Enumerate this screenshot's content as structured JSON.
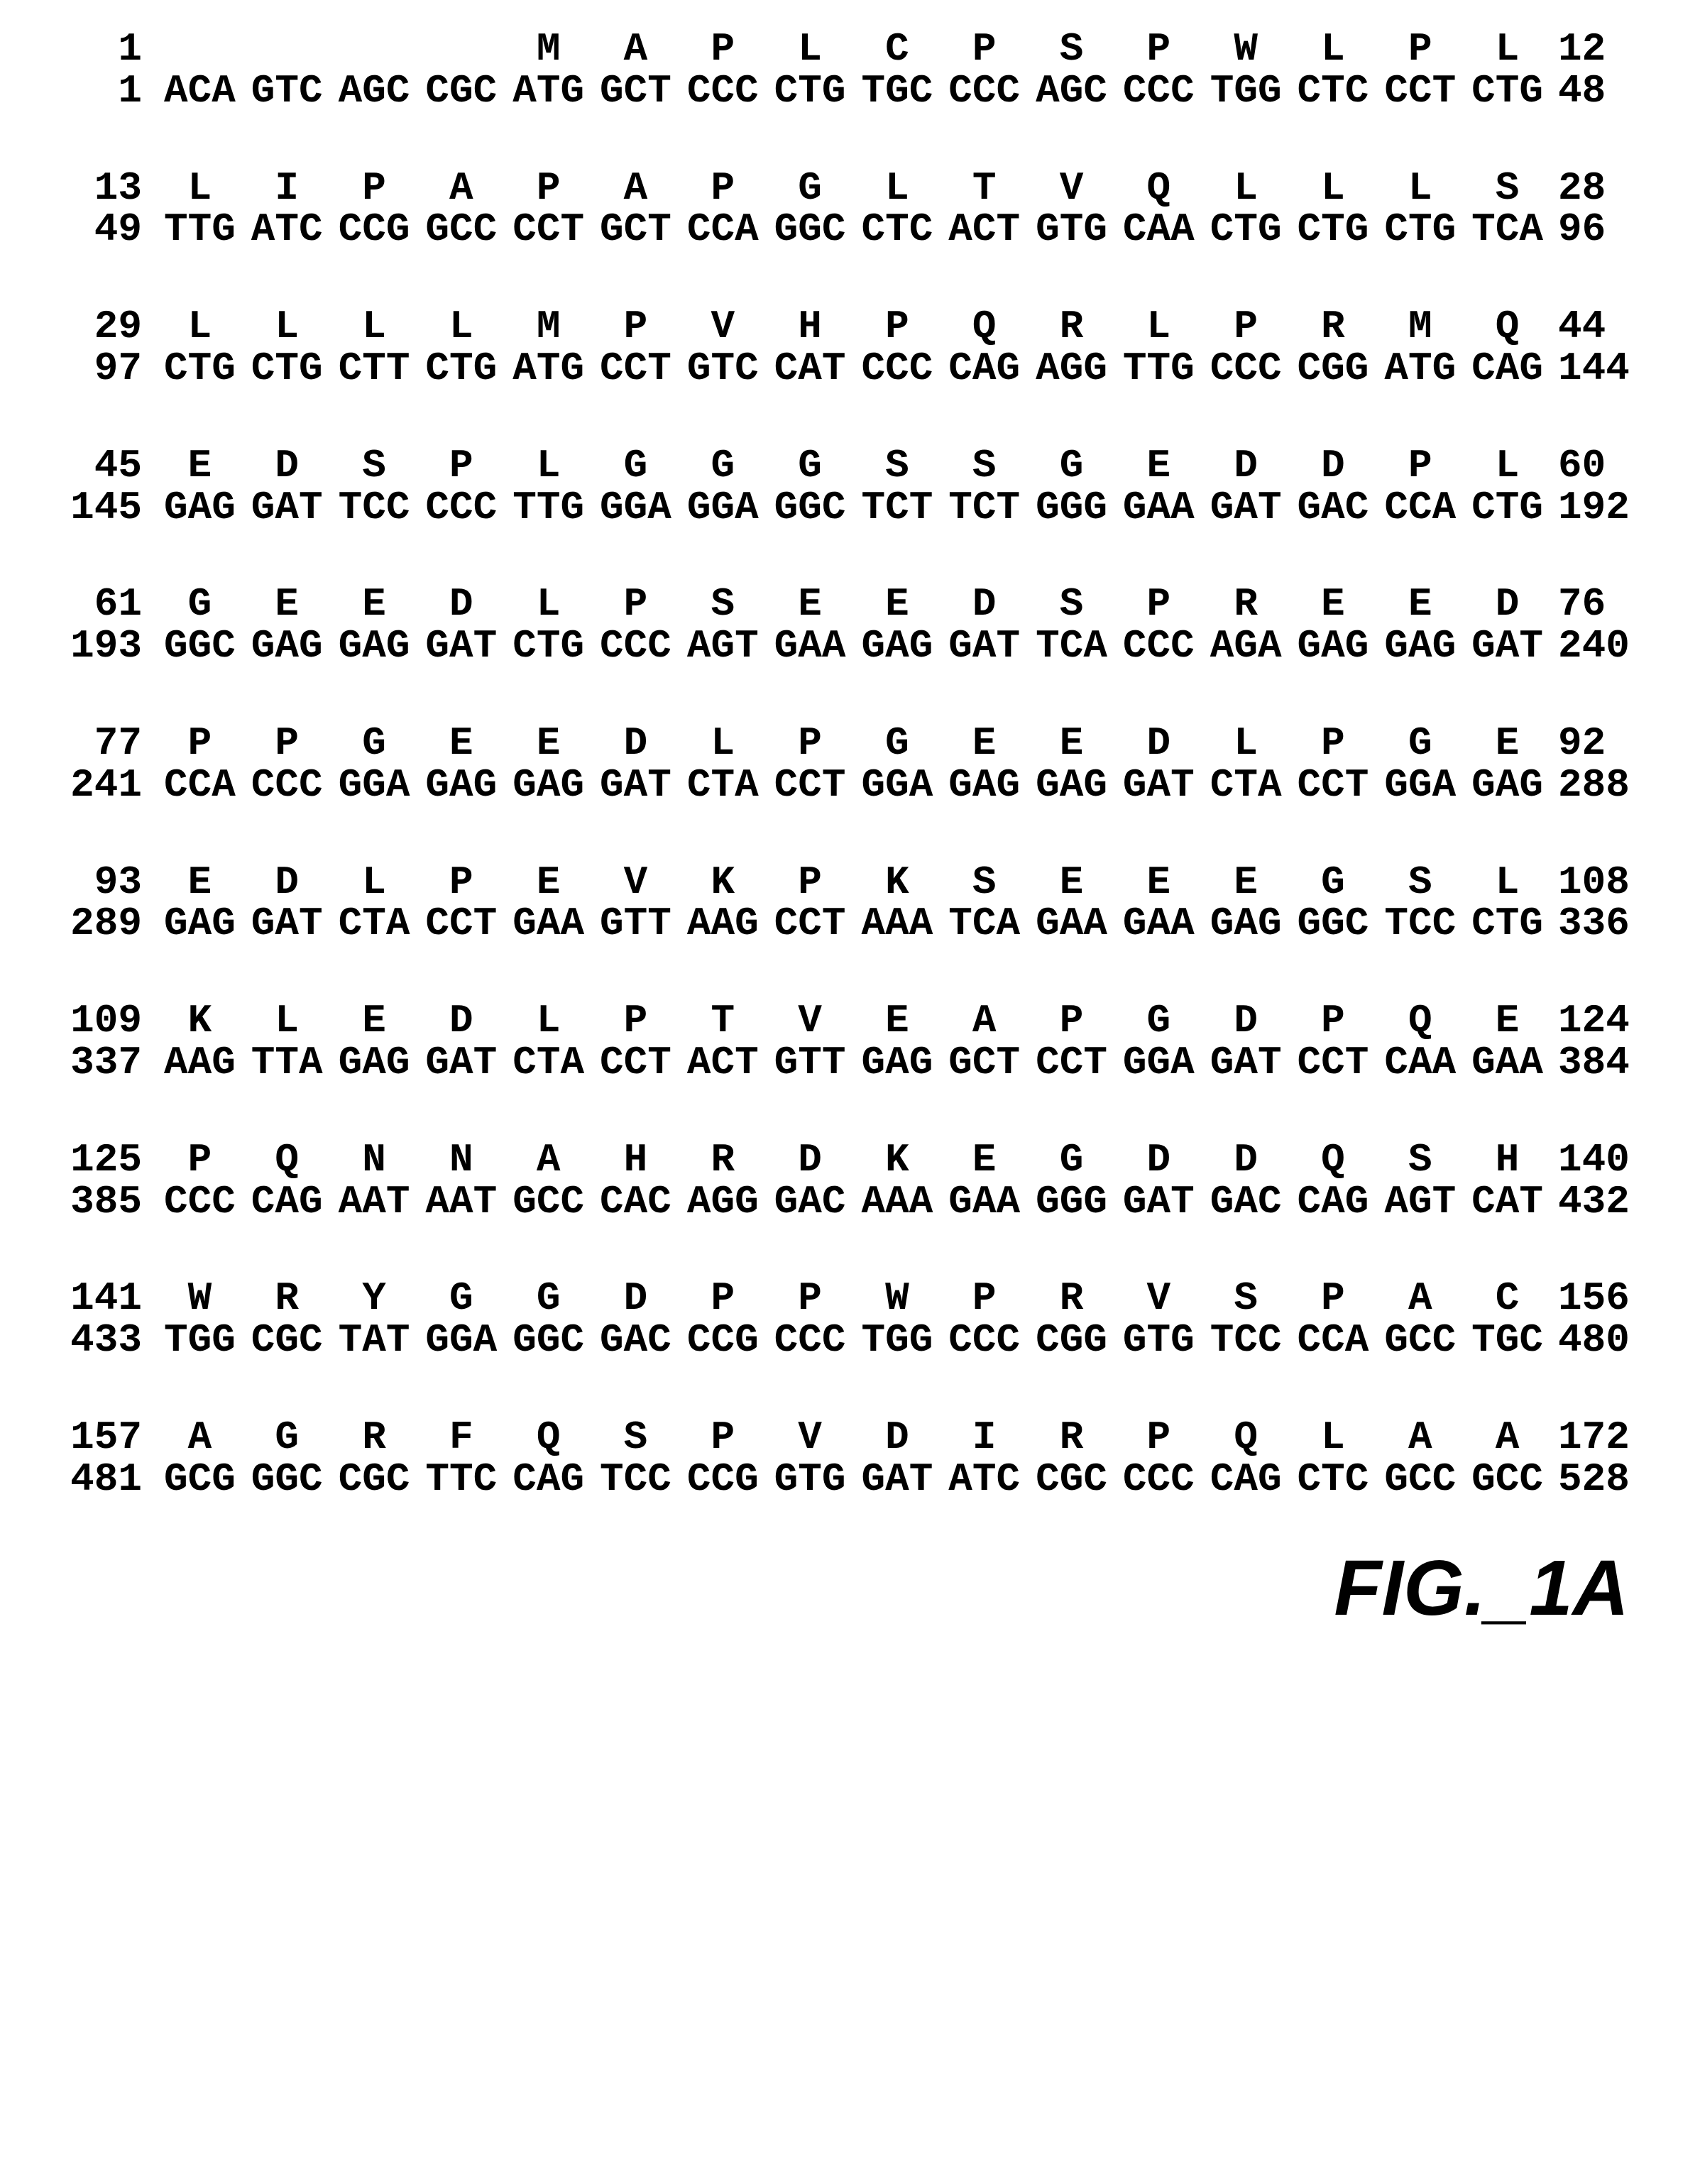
{
  "figure_label": "FIG._1A",
  "blocks": [
    {
      "left_aa": "1",
      "left_nt": "1",
      "right_aa": "12",
      "right_nt": "48",
      "first": true,
      "cols": [
        {
          "aa": "",
          "codon": "ACA"
        },
        {
          "aa": "",
          "codon": "GTC"
        },
        {
          "aa": "",
          "codon": "AGC"
        },
        {
          "aa": "",
          "codon": "CGC"
        },
        {
          "aa": "M",
          "codon": "ATG"
        },
        {
          "aa": "A",
          "codon": "GCT"
        },
        {
          "aa": "P",
          "codon": "CCC"
        },
        {
          "aa": "L",
          "codon": "CTG"
        },
        {
          "aa": "C",
          "codon": "TGC"
        },
        {
          "aa": "P",
          "codon": "CCC"
        },
        {
          "aa": "S",
          "codon": "AGC"
        },
        {
          "aa": "P",
          "codon": "CCC"
        },
        {
          "aa": "W",
          "codon": "TGG"
        },
        {
          "aa": "L",
          "codon": "CTC"
        },
        {
          "aa": "P",
          "codon": "CCT"
        },
        {
          "aa": "L",
          "codon": "CTG"
        }
      ]
    },
    {
      "left_aa": "13",
      "left_nt": "49",
      "right_aa": "28",
      "right_nt": "96",
      "cols": [
        {
          "aa": "L",
          "codon": "TTG"
        },
        {
          "aa": "I",
          "codon": "ATC"
        },
        {
          "aa": "P",
          "codon": "CCG"
        },
        {
          "aa": "A",
          "codon": "GCC"
        },
        {
          "aa": "P",
          "codon": "CCT"
        },
        {
          "aa": "A",
          "codon": "GCT"
        },
        {
          "aa": "P",
          "codon": "CCA"
        },
        {
          "aa": "G",
          "codon": "GGC"
        },
        {
          "aa": "L",
          "codon": "CTC"
        },
        {
          "aa": "T",
          "codon": "ACT"
        },
        {
          "aa": "V",
          "codon": "GTG"
        },
        {
          "aa": "Q",
          "codon": "CAA"
        },
        {
          "aa": "L",
          "codon": "CTG"
        },
        {
          "aa": "L",
          "codon": "CTG"
        },
        {
          "aa": "L",
          "codon": "CTG"
        },
        {
          "aa": "S",
          "codon": "TCA"
        }
      ]
    },
    {
      "left_aa": "29",
      "left_nt": "97",
      "right_aa": "44",
      "right_nt": "144",
      "cols": [
        {
          "aa": "L",
          "codon": "CTG"
        },
        {
          "aa": "L",
          "codon": "CTG"
        },
        {
          "aa": "L",
          "codon": "CTT"
        },
        {
          "aa": "L",
          "codon": "CTG"
        },
        {
          "aa": "M",
          "codon": "ATG"
        },
        {
          "aa": "P",
          "codon": "CCT"
        },
        {
          "aa": "V",
          "codon": "GTC"
        },
        {
          "aa": "H",
          "codon": "CAT"
        },
        {
          "aa": "P",
          "codon": "CCC"
        },
        {
          "aa": "Q",
          "codon": "CAG"
        },
        {
          "aa": "R",
          "codon": "AGG"
        },
        {
          "aa": "L",
          "codon": "TTG"
        },
        {
          "aa": "P",
          "codon": "CCC"
        },
        {
          "aa": "R",
          "codon": "CGG"
        },
        {
          "aa": "M",
          "codon": "ATG"
        },
        {
          "aa": "Q",
          "codon": "CAG"
        }
      ]
    },
    {
      "left_aa": "45",
      "left_nt": "145",
      "right_aa": "60",
      "right_nt": "192",
      "cols": [
        {
          "aa": "E",
          "codon": "GAG"
        },
        {
          "aa": "D",
          "codon": "GAT"
        },
        {
          "aa": "S",
          "codon": "TCC"
        },
        {
          "aa": "P",
          "codon": "CCC"
        },
        {
          "aa": "L",
          "codon": "TTG"
        },
        {
          "aa": "G",
          "codon": "GGA"
        },
        {
          "aa": "G",
          "codon": "GGA"
        },
        {
          "aa": "G",
          "codon": "GGC"
        },
        {
          "aa": "S",
          "codon": "TCT"
        },
        {
          "aa": "S",
          "codon": "TCT"
        },
        {
          "aa": "G",
          "codon": "GGG"
        },
        {
          "aa": "E",
          "codon": "GAA"
        },
        {
          "aa": "D",
          "codon": "GAT"
        },
        {
          "aa": "D",
          "codon": "GAC"
        },
        {
          "aa": "P",
          "codon": "CCA"
        },
        {
          "aa": "L",
          "codon": "CTG"
        }
      ]
    },
    {
      "left_aa": "61",
      "left_nt": "193",
      "right_aa": "76",
      "right_nt": "240",
      "cols": [
        {
          "aa": "G",
          "codon": "GGC"
        },
        {
          "aa": "E",
          "codon": "GAG"
        },
        {
          "aa": "E",
          "codon": "GAG"
        },
        {
          "aa": "D",
          "codon": "GAT"
        },
        {
          "aa": "L",
          "codon": "CTG"
        },
        {
          "aa": "P",
          "codon": "CCC"
        },
        {
          "aa": "S",
          "codon": "AGT"
        },
        {
          "aa": "E",
          "codon": "GAA"
        },
        {
          "aa": "E",
          "codon": "GAG"
        },
        {
          "aa": "D",
          "codon": "GAT"
        },
        {
          "aa": "S",
          "codon": "TCA"
        },
        {
          "aa": "P",
          "codon": "CCC"
        },
        {
          "aa": "R",
          "codon": "AGA"
        },
        {
          "aa": "E",
          "codon": "GAG"
        },
        {
          "aa": "E",
          "codon": "GAG"
        },
        {
          "aa": "D",
          "codon": "GAT"
        }
      ]
    },
    {
      "left_aa": "77",
      "left_nt": "241",
      "right_aa": "92",
      "right_nt": "288",
      "cols": [
        {
          "aa": "P",
          "codon": "CCA"
        },
        {
          "aa": "P",
          "codon": "CCC"
        },
        {
          "aa": "G",
          "codon": "GGA"
        },
        {
          "aa": "E",
          "codon": "GAG"
        },
        {
          "aa": "E",
          "codon": "GAG"
        },
        {
          "aa": "D",
          "codon": "GAT"
        },
        {
          "aa": "L",
          "codon": "CTA"
        },
        {
          "aa": "P",
          "codon": "CCT"
        },
        {
          "aa": "G",
          "codon": "GGA"
        },
        {
          "aa": "E",
          "codon": "GAG"
        },
        {
          "aa": "E",
          "codon": "GAG"
        },
        {
          "aa": "D",
          "codon": "GAT"
        },
        {
          "aa": "L",
          "codon": "CTA"
        },
        {
          "aa": "P",
          "codon": "CCT"
        },
        {
          "aa": "G",
          "codon": "GGA"
        },
        {
          "aa": "E",
          "codon": "GAG"
        }
      ]
    },
    {
      "left_aa": "93",
      "left_nt": "289",
      "right_aa": "108",
      "right_nt": "336",
      "cols": [
        {
          "aa": "E",
          "codon": "GAG"
        },
        {
          "aa": "D",
          "codon": "GAT"
        },
        {
          "aa": "L",
          "codon": "CTA"
        },
        {
          "aa": "P",
          "codon": "CCT"
        },
        {
          "aa": "E",
          "codon": "GAA"
        },
        {
          "aa": "V",
          "codon": "GTT"
        },
        {
          "aa": "K",
          "codon": "AAG"
        },
        {
          "aa": "P",
          "codon": "CCT"
        },
        {
          "aa": "K",
          "codon": "AAA"
        },
        {
          "aa": "S",
          "codon": "TCA"
        },
        {
          "aa": "E",
          "codon": "GAA"
        },
        {
          "aa": "E",
          "codon": "GAA"
        },
        {
          "aa": "E",
          "codon": "GAG"
        },
        {
          "aa": "G",
          "codon": "GGC"
        },
        {
          "aa": "S",
          "codon": "TCC"
        },
        {
          "aa": "L",
          "codon": "CTG"
        }
      ]
    },
    {
      "left_aa": "109",
      "left_nt": "337",
      "right_aa": "124",
      "right_nt": "384",
      "cols": [
        {
          "aa": "K",
          "codon": "AAG"
        },
        {
          "aa": "L",
          "codon": "TTA"
        },
        {
          "aa": "E",
          "codon": "GAG"
        },
        {
          "aa": "D",
          "codon": "GAT"
        },
        {
          "aa": "L",
          "codon": "CTA"
        },
        {
          "aa": "P",
          "codon": "CCT"
        },
        {
          "aa": "T",
          "codon": "ACT"
        },
        {
          "aa": "V",
          "codon": "GTT"
        },
        {
          "aa": "E",
          "codon": "GAG"
        },
        {
          "aa": "A",
          "codon": "GCT"
        },
        {
          "aa": "P",
          "codon": "CCT"
        },
        {
          "aa": "G",
          "codon": "GGA"
        },
        {
          "aa": "D",
          "codon": "GAT"
        },
        {
          "aa": "P",
          "codon": "CCT"
        },
        {
          "aa": "Q",
          "codon": "CAA"
        },
        {
          "aa": "E",
          "codon": "GAA"
        }
      ]
    },
    {
      "left_aa": "125",
      "left_nt": "385",
      "right_aa": "140",
      "right_nt": "432",
      "cols": [
        {
          "aa": "P",
          "codon": "CCC"
        },
        {
          "aa": "Q",
          "codon": "CAG"
        },
        {
          "aa": "N",
          "codon": "AAT"
        },
        {
          "aa": "N",
          "codon": "AAT"
        },
        {
          "aa": "A",
          "codon": "GCC"
        },
        {
          "aa": "H",
          "codon": "CAC"
        },
        {
          "aa": "R",
          "codon": "AGG"
        },
        {
          "aa": "D",
          "codon": "GAC"
        },
        {
          "aa": "K",
          "codon": "AAA"
        },
        {
          "aa": "E",
          "codon": "GAA"
        },
        {
          "aa": "G",
          "codon": "GGG"
        },
        {
          "aa": "D",
          "codon": "GAT"
        },
        {
          "aa": "D",
          "codon": "GAC"
        },
        {
          "aa": "Q",
          "codon": "CAG"
        },
        {
          "aa": "S",
          "codon": "AGT"
        },
        {
          "aa": "H",
          "codon": "CAT"
        }
      ]
    },
    {
      "left_aa": "141",
      "left_nt": "433",
      "right_aa": "156",
      "right_nt": "480",
      "cols": [
        {
          "aa": "W",
          "codon": "TGG"
        },
        {
          "aa": "R",
          "codon": "CGC"
        },
        {
          "aa": "Y",
          "codon": "TAT"
        },
        {
          "aa": "G",
          "codon": "GGA"
        },
        {
          "aa": "G",
          "codon": "GGC"
        },
        {
          "aa": "D",
          "codon": "GAC"
        },
        {
          "aa": "P",
          "codon": "CCG"
        },
        {
          "aa": "P",
          "codon": "CCC"
        },
        {
          "aa": "W",
          "codon": "TGG"
        },
        {
          "aa": "P",
          "codon": "CCC"
        },
        {
          "aa": "R",
          "codon": "CGG"
        },
        {
          "aa": "V",
          "codon": "GTG"
        },
        {
          "aa": "S",
          "codon": "TCC"
        },
        {
          "aa": "P",
          "codon": "CCA"
        },
        {
          "aa": "A",
          "codon": "GCC"
        },
        {
          "aa": "C",
          "codon": "TGC"
        }
      ]
    },
    {
      "left_aa": "157",
      "left_nt": "481",
      "right_aa": "172",
      "right_nt": "528",
      "cols": [
        {
          "aa": "A",
          "codon": "GCG"
        },
        {
          "aa": "G",
          "codon": "GGC"
        },
        {
          "aa": "R",
          "codon": "CGC"
        },
        {
          "aa": "F",
          "codon": "TTC"
        },
        {
          "aa": "Q",
          "codon": "CAG"
        },
        {
          "aa": "S",
          "codon": "TCC"
        },
        {
          "aa": "P",
          "codon": "CCG"
        },
        {
          "aa": "V",
          "codon": "GTG"
        },
        {
          "aa": "D",
          "codon": "GAT"
        },
        {
          "aa": "I",
          "codon": "ATC"
        },
        {
          "aa": "R",
          "codon": "CGC"
        },
        {
          "aa": "P",
          "codon": "CCC"
        },
        {
          "aa": "Q",
          "codon": "CAG"
        },
        {
          "aa": "L",
          "codon": "CTC"
        },
        {
          "aa": "A",
          "codon": "GCC"
        },
        {
          "aa": "A",
          "codon": "GCC"
        }
      ]
    }
  ]
}
